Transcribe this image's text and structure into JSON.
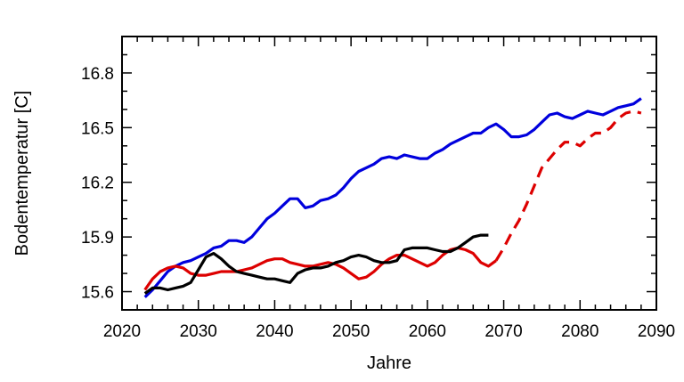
{
  "chart_data": {
    "type": "line",
    "xlabel": "Jahre",
    "ylabel": "Bodentemperatur [C]",
    "xlim": [
      2020,
      2090
    ],
    "ylim": [
      15.5,
      17.0
    ],
    "xticks": [
      2020,
      2030,
      2040,
      2050,
      2060,
      2070,
      2080,
      2090
    ],
    "xtick_labels": [
      "2020",
      "2030",
      "2040",
      "2050",
      "2060",
      "2070",
      "2080",
      "2090"
    ],
    "yticks": [
      15.6,
      15.9,
      16.2,
      16.5,
      16.8
    ],
    "ytick_labels": [
      "15.6",
      "15.9",
      "16.2",
      "16.5",
      "16.8"
    ],
    "grid": false,
    "series": [
      {
        "color": "#0000dd",
        "dash": "solid",
        "x": [
          2023,
          2024,
          2025,
          2026,
          2027,
          2028,
          2029,
          2030,
          2031,
          2032,
          2033,
          2034,
          2035,
          2036,
          2037,
          2038,
          2039,
          2040,
          2041,
          2042,
          2043,
          2044,
          2045,
          2046,
          2047,
          2048,
          2049,
          2050,
          2051,
          2052,
          2053,
          2054,
          2055,
          2056,
          2057,
          2058,
          2059,
          2060,
          2061,
          2062,
          2063,
          2064,
          2065,
          2066,
          2067,
          2068,
          2069,
          2070,
          2071,
          2072,
          2073,
          2074,
          2075,
          2076,
          2077,
          2078,
          2079,
          2080,
          2081,
          2082,
          2083,
          2084,
          2085,
          2086,
          2087,
          2088
        ],
        "y": [
          15.57,
          15.61,
          15.66,
          15.71,
          15.74,
          15.76,
          15.77,
          15.79,
          15.81,
          15.84,
          15.85,
          15.88,
          15.88,
          15.87,
          15.9,
          15.95,
          16.0,
          16.03,
          16.07,
          16.11,
          16.11,
          16.06,
          16.07,
          16.1,
          16.11,
          16.13,
          16.17,
          16.22,
          16.26,
          16.28,
          16.3,
          16.33,
          16.34,
          16.33,
          16.35,
          16.34,
          16.33,
          16.33,
          16.36,
          16.38,
          16.41,
          16.43,
          16.45,
          16.47,
          16.47,
          16.5,
          16.52,
          16.49,
          16.45,
          16.45,
          16.46,
          16.49,
          16.53,
          16.57,
          16.58,
          16.56,
          16.55,
          16.57,
          16.59,
          16.58,
          16.57,
          16.59,
          16.61,
          16.62,
          16.63,
          16.66
        ]
      },
      {
        "color": "#dd0000",
        "dash": "solid",
        "x": [
          2023,
          2024,
          2025,
          2026,
          2027,
          2028,
          2029,
          2030,
          2031,
          2032,
          2033,
          2034,
          2035,
          2036,
          2037,
          2038,
          2039,
          2040,
          2041,
          2042,
          2043,
          2044,
          2045,
          2046,
          2047,
          2048,
          2049,
          2050,
          2051,
          2052,
          2053,
          2054,
          2055,
          2056,
          2057,
          2058,
          2059,
          2060,
          2061,
          2062,
          2063,
          2064,
          2065,
          2066,
          2067,
          2068,
          2069
        ],
        "y": [
          15.61,
          15.67,
          15.71,
          15.73,
          15.74,
          15.73,
          15.7,
          15.69,
          15.69,
          15.7,
          15.71,
          15.71,
          15.71,
          15.72,
          15.73,
          15.75,
          15.77,
          15.78,
          15.78,
          15.76,
          15.75,
          15.74,
          15.74,
          15.75,
          15.76,
          15.75,
          15.73,
          15.7,
          15.67,
          15.68,
          15.71,
          15.75,
          15.78,
          15.8,
          15.8,
          15.78,
          15.76,
          15.74,
          15.76,
          15.8,
          15.83,
          15.84,
          15.83,
          15.81,
          15.76,
          15.74,
          15.77
        ]
      },
      {
        "color": "#dd0000",
        "dash": "dashed",
        "x": [
          2069,
          2070,
          2071,
          2072,
          2073,
          2074,
          2075,
          2076,
          2077,
          2078,
          2079,
          2080,
          2081,
          2082,
          2083,
          2084,
          2085,
          2086,
          2087,
          2088
        ],
        "y": [
          15.77,
          15.84,
          15.92,
          15.99,
          16.08,
          16.18,
          16.28,
          16.33,
          16.38,
          16.42,
          16.42,
          16.4,
          16.44,
          16.47,
          16.47,
          16.5,
          16.55,
          16.58,
          16.59,
          16.58
        ]
      },
      {
        "color": "#000000",
        "dash": "solid",
        "x": [
          2023,
          2024,
          2025,
          2026,
          2027,
          2028,
          2029,
          2030,
          2031,
          2032,
          2033,
          2034,
          2035,
          2036,
          2037,
          2038,
          2039,
          2040,
          2041,
          2042,
          2043,
          2044,
          2045,
          2046,
          2047,
          2048,
          2049,
          2050,
          2051,
          2052,
          2053,
          2054,
          2055,
          2056,
          2057,
          2058,
          2059,
          2060,
          2061,
          2062,
          2063,
          2064,
          2065,
          2066,
          2067,
          2068
        ],
        "y": [
          15.59,
          15.62,
          15.62,
          15.61,
          15.62,
          15.63,
          15.65,
          15.72,
          15.79,
          15.81,
          15.78,
          15.74,
          15.71,
          15.7,
          15.69,
          15.68,
          15.67,
          15.67,
          15.66,
          15.65,
          15.7,
          15.72,
          15.73,
          15.73,
          15.74,
          15.76,
          15.77,
          15.79,
          15.8,
          15.79,
          15.77,
          15.76,
          15.76,
          15.77,
          15.83,
          15.84,
          15.84,
          15.84,
          15.83,
          15.82,
          15.82,
          15.84,
          15.87,
          15.9,
          15.91,
          15.91
        ]
      }
    ]
  }
}
